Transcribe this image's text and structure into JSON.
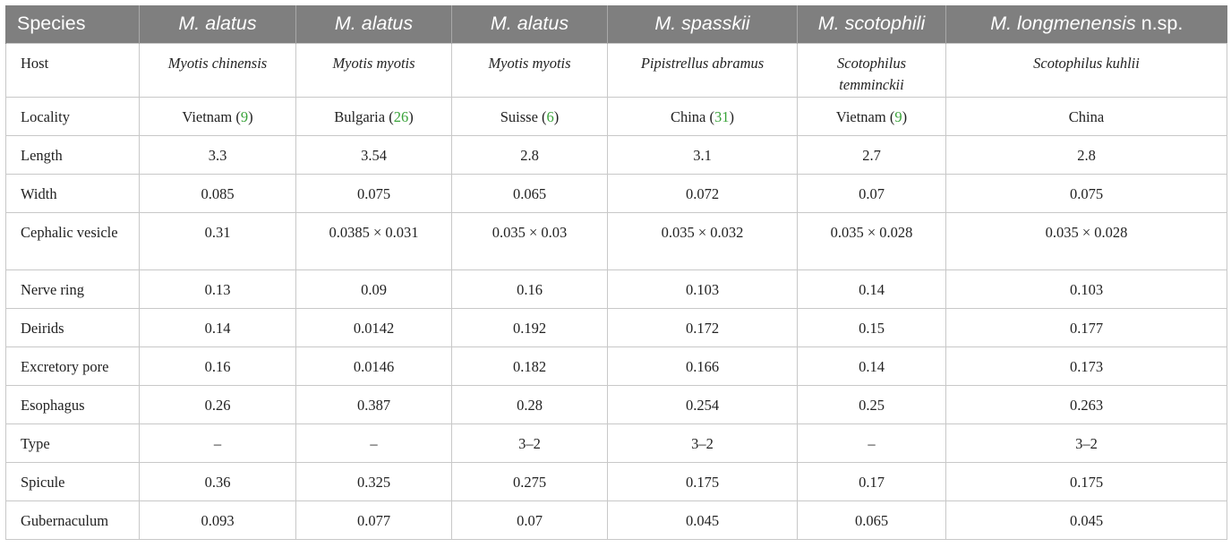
{
  "table": {
    "header": [
      {
        "name": "Species",
        "suffix": ""
      },
      {
        "name": "M. alatus",
        "suffix": ""
      },
      {
        "name": "M. alatus",
        "suffix": ""
      },
      {
        "name": "M. alatus",
        "suffix": ""
      },
      {
        "name": "M. spasskii",
        "suffix": ""
      },
      {
        "name": "M. scotophili",
        "suffix": ""
      },
      {
        "name": "M. longmenensis",
        "suffix": " n.sp."
      }
    ],
    "host": {
      "label": "Host",
      "values": [
        "Myotis chinensis",
        "Myotis myotis",
        "Myotis myotis",
        "Pipistrellus abramus",
        "Scotophilus temminckii",
        "Scotophilus kuhlii"
      ]
    },
    "locality": {
      "label": "Locality",
      "values": [
        {
          "place": "Vietnam",
          "ref": "9"
        },
        {
          "place": "Bulgaria",
          "ref": "26"
        },
        {
          "place": "Suisse",
          "ref": "6"
        },
        {
          "place": "China",
          "ref": "31"
        },
        {
          "place": "Vietnam",
          "ref": "9"
        },
        {
          "place": "China",
          "ref": ""
        }
      ]
    },
    "rows": [
      {
        "label": "Length",
        "values": [
          "3.3",
          "3.54",
          "2.8",
          "3.1",
          "2.7",
          "2.8"
        ]
      },
      {
        "label": "Width",
        "values": [
          "0.085",
          "0.075",
          "0.065",
          "0.072",
          "0.07",
          "0.075"
        ]
      },
      {
        "label": "Cephalic vesicle",
        "values": [
          "0.31",
          "0.0385 × 0.031",
          "0.035 × 0.03",
          "0.035 × 0.032",
          "0.035 × 0.028",
          "0.035 × 0.028"
        ]
      },
      {
        "label": "Nerve ring",
        "values": [
          "0.13",
          "0.09",
          "0.16",
          "0.103",
          "0.14",
          "0.103"
        ]
      },
      {
        "label": "Deirids",
        "values": [
          "0.14",
          "0.0142",
          "0.192",
          "0.172",
          "0.15",
          "0.177"
        ]
      },
      {
        "label": "Excretory pore",
        "values": [
          "0.16",
          "0.0146",
          "0.182",
          "0.166",
          "0.14",
          "0.173"
        ]
      },
      {
        "label": "Esophagus",
        "values": [
          "0.26",
          "0.387",
          "0.28",
          "0.254",
          "0.25",
          "0.263"
        ]
      },
      {
        "label": "Type",
        "values": [
          "–",
          "–",
          "3–2",
          "3–2",
          "–",
          "3–2"
        ]
      },
      {
        "label": "Spicule",
        "values": [
          "0.36",
          "0.325",
          "0.275",
          "0.175",
          "0.17",
          "0.175"
        ]
      },
      {
        "label": "Gubernaculum",
        "values": [
          "0.093",
          "0.077",
          "0.07",
          "0.045",
          "0.065",
          "0.045"
        ]
      }
    ]
  },
  "colors": {
    "header_bg": "#7f7f7f",
    "header_text": "#ffffff",
    "reference_link": "#3aa33a",
    "grid": "#c8c8c8"
  }
}
